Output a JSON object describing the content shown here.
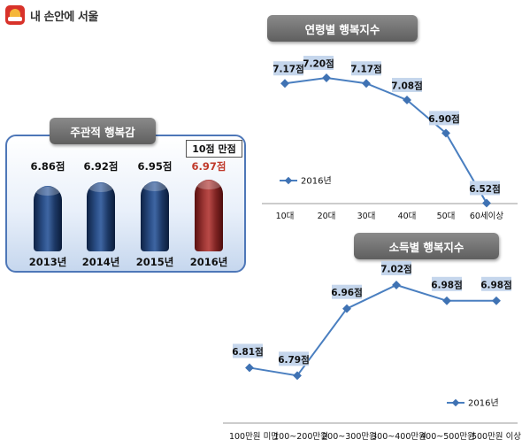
{
  "logo": {
    "text": "내 손안에 서울"
  },
  "subjective": {
    "title": "주관적 행복감",
    "scale_note": "10점 만점"
  },
  "age_chart": {
    "title": "연령별 행복지수"
  },
  "income_chart": {
    "title": "소득별 행복지수"
  },
  "colors": {
    "accent_blue": "#4a7fc0",
    "highlight_red": "#c0392b",
    "panel_border": "#4e77b8",
    "label_bg": "#c5d6ec"
  },
  "chart_data": [
    {
      "type": "bar",
      "title": "주관적 행복감",
      "categories": [
        "2013년",
        "2014년",
        "2015년",
        "2016년"
      ],
      "values": [
        6.86,
        6.92,
        6.95,
        6.97
      ],
      "value_labels": [
        "6.86점",
        "6.92점",
        "6.95점",
        "6.97점"
      ],
      "highlight_index": 3,
      "note": "10점 만점"
    },
    {
      "type": "line",
      "title": "연령별 행복지수",
      "categories": [
        "10대",
        "20대",
        "30대",
        "40대",
        "50대",
        "60세이상"
      ],
      "series": [
        {
          "name": "2016년",
          "values": [
            7.17,
            7.2,
            7.17,
            7.08,
            6.9,
            6.52
          ],
          "value_labels": [
            "7.17점",
            "7.20점",
            "7.17점",
            "7.08점",
            "6.90점",
            "6.52점"
          ]
        }
      ],
      "legend": "left"
    },
    {
      "type": "line",
      "title": "소득별 행복지수",
      "categories": [
        "100만원 미만",
        "100~200만원",
        "200~300만원",
        "300~400만원",
        "400~500만원",
        "500만원 이상"
      ],
      "series": [
        {
          "name": "2016년",
          "values": [
            6.81,
            6.79,
            6.96,
            7.02,
            6.98,
            6.98
          ],
          "value_labels": [
            "6.81점",
            "6.79점",
            "6.96점",
            "7.02점",
            "6.98점",
            "6.98점"
          ]
        }
      ],
      "legend": "bottom-right"
    }
  ]
}
